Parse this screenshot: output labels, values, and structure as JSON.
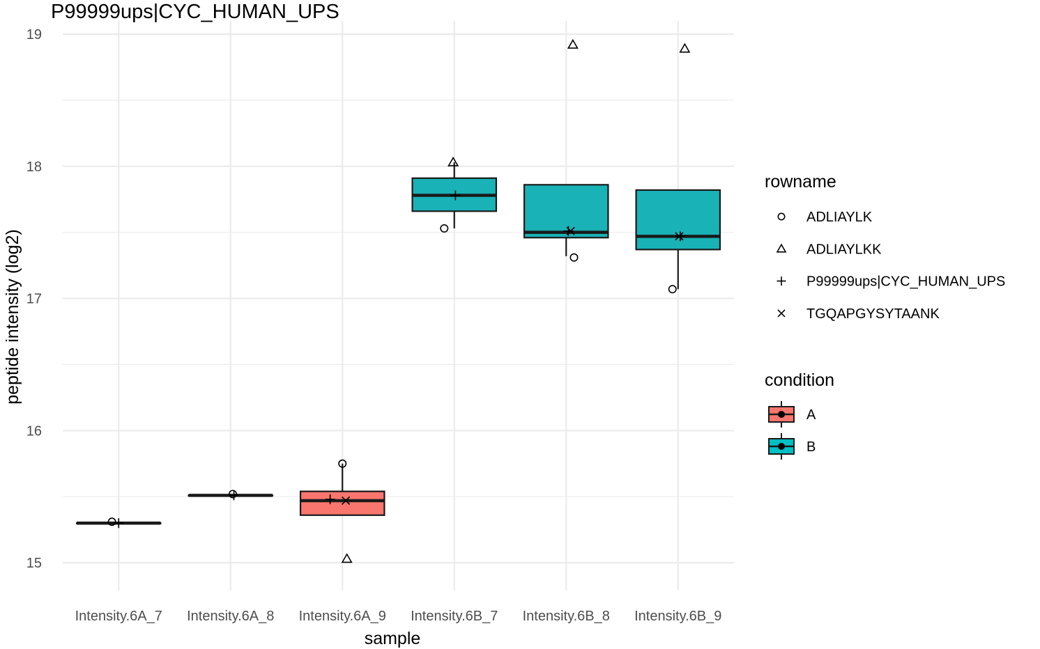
{
  "chart_data": {
    "type": "boxplot",
    "title": "P99999ups|CYC_HUMAN_UPS",
    "xlabel": "sample",
    "ylabel": "peptide intensity (log2)",
    "ylim": [
      14.79,
      19.1
    ],
    "yticks": [
      15,
      16,
      17,
      18,
      19
    ],
    "grid": true,
    "categories": [
      "Intensity.6A_7",
      "Intensity.6A_8",
      "Intensity.6A_9",
      "Intensity.6B_7",
      "Intensity.6B_8",
      "Intensity.6B_9"
    ],
    "boxes": [
      {
        "sample": "Intensity.6A_7",
        "condition": "A",
        "lower_whisker": 15.3,
        "q1": 15.3,
        "median": 15.3,
        "q3": 15.3,
        "upper_whisker": 15.3
      },
      {
        "sample": "Intensity.6A_8",
        "condition": "A",
        "lower_whisker": 15.51,
        "q1": 15.51,
        "median": 15.51,
        "q3": 15.51,
        "upper_whisker": 15.51
      },
      {
        "sample": "Intensity.6A_9",
        "condition": "A",
        "lower_whisker": 15.36,
        "q1": 15.36,
        "median": 15.47,
        "q3": 15.54,
        "upper_whisker": 15.75
      },
      {
        "sample": "Intensity.6B_7",
        "condition": "B",
        "lower_whisker": 17.53,
        "q1": 17.66,
        "median": 17.78,
        "q3": 17.91,
        "upper_whisker": 18.03
      },
      {
        "sample": "Intensity.6B_8",
        "condition": "B",
        "lower_whisker": 17.32,
        "q1": 17.46,
        "median": 17.5,
        "q3": 17.86,
        "upper_whisker": 17.86
      },
      {
        "sample": "Intensity.6B_9",
        "condition": "B",
        "lower_whisker": 17.07,
        "q1": 17.37,
        "median": 17.47,
        "q3": 17.82,
        "upper_whisker": 17.82
      }
    ],
    "series": [
      {
        "name": "ADLIAYLK",
        "shape": "circle",
        "points": [
          {
            "sample": "Intensity.6A_7",
            "y": 15.31,
            "jitter": -0.06
          },
          {
            "sample": "Intensity.6A_8",
            "y": 15.52,
            "jitter": 0.02
          },
          {
            "sample": "Intensity.6A_9",
            "y": 15.75,
            "jitter": 0.0
          },
          {
            "sample": "Intensity.6B_7",
            "y": 17.53,
            "jitter": -0.09
          },
          {
            "sample": "Intensity.6B_8",
            "y": 17.31,
            "jitter": 0.07
          },
          {
            "sample": "Intensity.6B_9",
            "y": 17.07,
            "jitter": -0.05
          }
        ]
      },
      {
        "name": "ADLIAYLKK",
        "shape": "triangle",
        "points": [
          {
            "sample": "Intensity.6A_9",
            "y": 15.03,
            "jitter": 0.04
          },
          {
            "sample": "Intensity.6B_7",
            "y": 18.03,
            "jitter": -0.01
          },
          {
            "sample": "Intensity.6B_8",
            "y": 18.92,
            "jitter": 0.06
          },
          {
            "sample": "Intensity.6B_9",
            "y": 18.89,
            "jitter": 0.06
          }
        ]
      },
      {
        "name": "P99999ups|CYC_HUMAN_UPS",
        "shape": "plus",
        "points": [
          {
            "sample": "Intensity.6A_7",
            "y": 15.3,
            "jitter": 0.0
          },
          {
            "sample": "Intensity.6A_8",
            "y": 15.51,
            "jitter": 0.03
          },
          {
            "sample": "Intensity.6A_9",
            "y": 15.48,
            "jitter": -0.11
          },
          {
            "sample": "Intensity.6B_7",
            "y": 17.78,
            "jitter": 0.01
          },
          {
            "sample": "Intensity.6B_8",
            "y": 17.51,
            "jitter": 0.02
          },
          {
            "sample": "Intensity.6B_9",
            "y": 17.47,
            "jitter": 0.02
          }
        ]
      },
      {
        "name": "TGQAPGYSYTAANK",
        "shape": "cross",
        "points": [
          {
            "sample": "Intensity.6A_9",
            "y": 15.47,
            "jitter": 0.03
          },
          {
            "sample": "Intensity.6B_8",
            "y": 17.51,
            "jitter": 0.04
          },
          {
            "sample": "Intensity.6B_9",
            "y": 17.47,
            "jitter": 0.01
          }
        ]
      }
    ],
    "legends": [
      {
        "title": "rowname",
        "items": [
          {
            "label": "ADLIAYLK",
            "shape": "circle"
          },
          {
            "label": "ADLIAYLKK",
            "shape": "triangle"
          },
          {
            "label": "P99999ups|CYC_HUMAN_UPS",
            "shape": "plus"
          },
          {
            "label": "TGQAPGYSYTAANK",
            "shape": "cross"
          }
        ]
      },
      {
        "title": "condition",
        "items": [
          {
            "label": "A",
            "color": "#F8766D"
          },
          {
            "label": "B",
            "color": "#00BFC4"
          }
        ]
      }
    ],
    "colors": {
      "A": "#F8766D",
      "B": "#19B2B7",
      "grid": "#EBEBEB",
      "stroke": "#1a1a1a"
    }
  }
}
